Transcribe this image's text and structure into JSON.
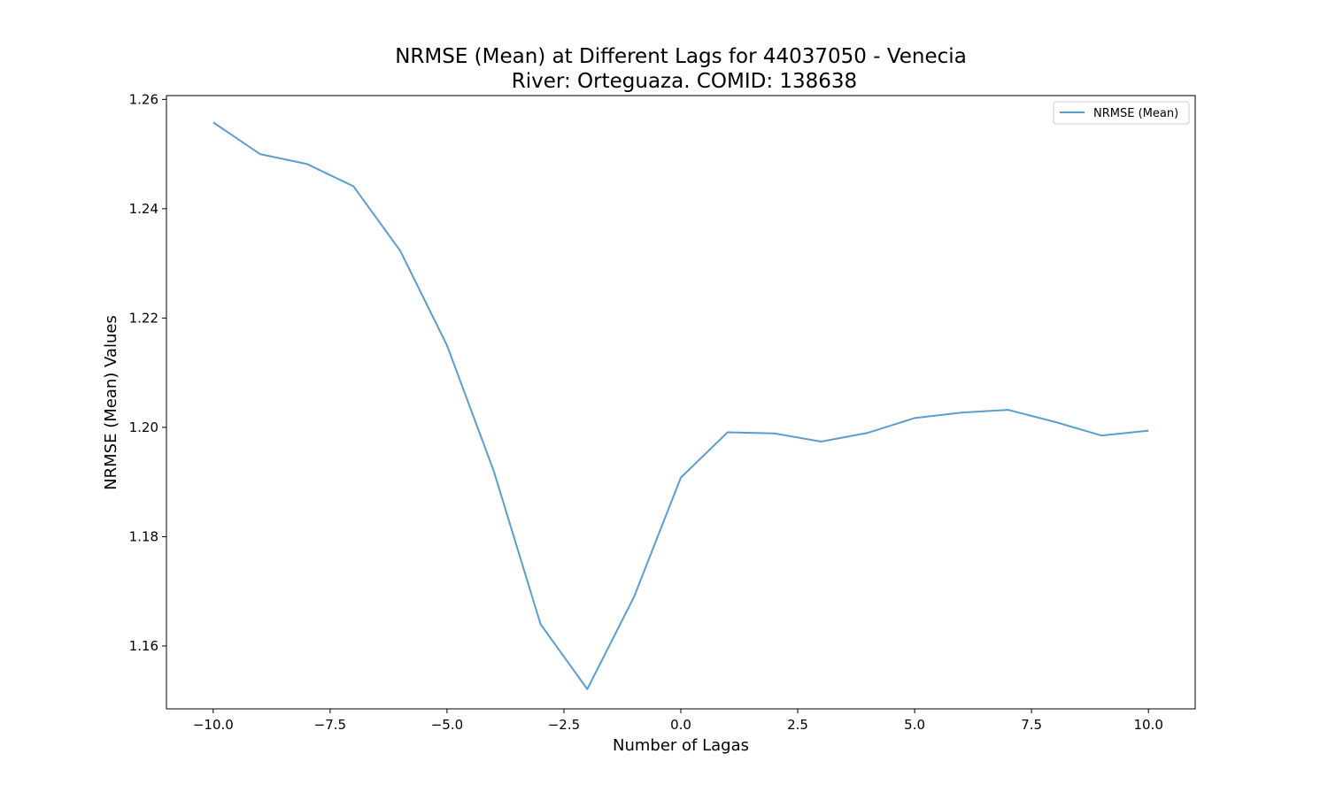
{
  "chart_data": {
    "type": "line",
    "title_line1": "NRMSE (Mean) at Different Lags for 44037050 - Venecia",
    "title_line2": "River: Orteguaza. COMID: 138638",
    "xlabel": "Number of Lagas",
    "ylabel": "NRMSE (Mean) Values",
    "xlim": [
      -11,
      11
    ],
    "ylim": [
      1.1485,
      1.2607
    ],
    "x_ticks": [
      -10.0,
      -7.5,
      -5.0,
      -2.5,
      0.0,
      2.5,
      5.0,
      7.5,
      10.0
    ],
    "x_tick_labels": [
      "−10.0",
      "−7.5",
      "−5.0",
      "−2.5",
      "0.0",
      "2.5",
      "5.0",
      "7.5",
      "10.0"
    ],
    "y_ticks": [
      1.16,
      1.18,
      1.2,
      1.22,
      1.24,
      1.26
    ],
    "y_tick_labels": [
      "1.16",
      "1.18",
      "1.20",
      "1.22",
      "1.24",
      "1.26"
    ],
    "legend_position": "upper right",
    "grid": false,
    "series": [
      {
        "name": "NRMSE (Mean)",
        "color": "#5b9ecb",
        "x": [
          -10,
          -9,
          -8,
          -7,
          -6,
          -5,
          -4,
          -3,
          -2,
          -1,
          0,
          1,
          2,
          3,
          4,
          5,
          6,
          7,
          8,
          9,
          10
        ],
        "y": [
          1.2558,
          1.25,
          1.2482,
          1.2441,
          1.2323,
          1.215,
          1.192,
          1.164,
          1.1521,
          1.169,
          1.1908,
          1.1991,
          1.1989,
          1.1974,
          1.199,
          1.2017,
          1.2027,
          1.2032,
          1.201,
          1.1985,
          1.1994
        ]
      }
    ]
  }
}
